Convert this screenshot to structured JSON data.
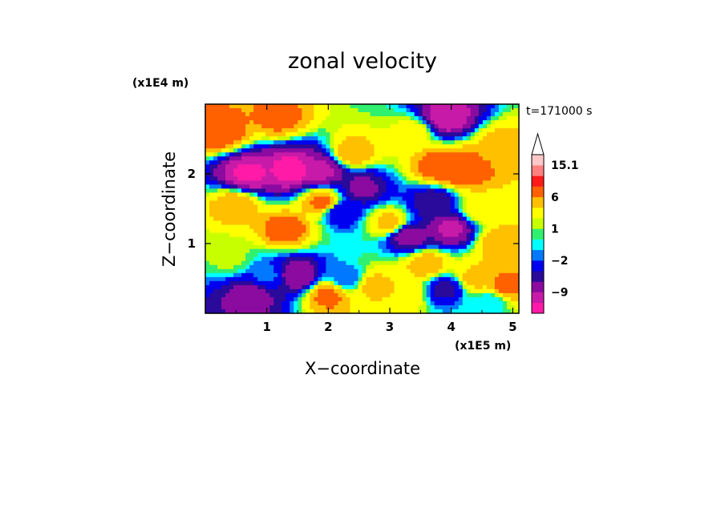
{
  "chart_data": {
    "type": "heatmap",
    "title": "zonal velocity",
    "xlabel": "X−coordinate",
    "ylabel": "Z−coordinate",
    "x_unit": "(x1E5 m)",
    "y_unit": "(x1E4 m)",
    "time_label": "t=171000 s",
    "xlim": [
      0,
      5.1
    ],
    "ylim": [
      0,
      3.0
    ],
    "x_ticks": [
      1,
      2,
      3,
      4,
      5
    ],
    "y_ticks": [
      1,
      2
    ],
    "x_tick_labels": [
      "1",
      "2",
      "3",
      "4",
      "5"
    ],
    "y_tick_labels": [
      "1",
      "2"
    ],
    "colorbar": {
      "levels": [
        -15,
        -12,
        -9,
        -6,
        -4,
        -2,
        -1,
        0,
        1,
        2,
        4,
        6,
        9,
        12,
        15.1
      ],
      "colors": [
        "#ff1aa8",
        "#c81aa8",
        "#8b0aa0",
        "#2a0a9a",
        "#0000f0",
        "#0078ff",
        "#00ffff",
        "#30f070",
        "#c8ff00",
        "#ffff00",
        "#ffc000",
        "#ff6000",
        "#ff1a1a",
        "#ff8080",
        "#ffc8c8"
      ],
      "labels": [
        "15.1",
        "6",
        "1",
        "−2",
        "−9"
      ],
      "label_values": [
        15.1,
        6,
        1,
        -2,
        -9
      ],
      "extend_top": true
    },
    "field_blobs": [
      {
        "x": 0.25,
        "z": 2.6,
        "v": 8
      },
      {
        "x": 1.2,
        "z": 2.8,
        "v": 7
      },
      {
        "x": 0.7,
        "z": 2.0,
        "v": -13
      },
      {
        "x": 1.4,
        "z": 2.05,
        "v": -14
      },
      {
        "x": 1.9,
        "z": 2.05,
        "v": -10
      },
      {
        "x": 2.4,
        "z": 2.3,
        "v": 6
      },
      {
        "x": 2.55,
        "z": 1.8,
        "v": -7
      },
      {
        "x": 3.4,
        "z": 2.6,
        "v": 3
      },
      {
        "x": 3.9,
        "z": 2.8,
        "v": -12
      },
      {
        "x": 4.2,
        "z": 2.05,
        "v": 9
      },
      {
        "x": 3.8,
        "z": 2.1,
        "v": 8
      },
      {
        "x": 4.8,
        "z": 2.4,
        "v": 5
      },
      {
        "x": 1.3,
        "z": 1.2,
        "v": 8
      },
      {
        "x": 0.5,
        "z": 1.55,
        "v": 6
      },
      {
        "x": 1.9,
        "z": 1.6,
        "v": 7
      },
      {
        "x": 2.2,
        "z": 1.45,
        "v": -4
      },
      {
        "x": 3.0,
        "z": 1.3,
        "v": 5
      },
      {
        "x": 3.3,
        "z": 1.1,
        "v": -8
      },
      {
        "x": 4.0,
        "z": 1.2,
        "v": -10
      },
      {
        "x": 3.7,
        "z": 1.6,
        "v": -6
      },
      {
        "x": 4.8,
        "z": 1.0,
        "v": 6
      },
      {
        "x": 4.5,
        "z": 1.5,
        "v": 4
      },
      {
        "x": 0.4,
        "z": 0.8,
        "v": 1.5
      },
      {
        "x": 1.0,
        "z": 0.55,
        "v": -1.5
      },
      {
        "x": 1.5,
        "z": 0.55,
        "v": -9
      },
      {
        "x": 2.3,
        "z": 0.5,
        "v": -2
      },
      {
        "x": 2.0,
        "z": 0.25,
        "v": 7
      },
      {
        "x": 0.75,
        "z": 0.25,
        "v": -8
      },
      {
        "x": 2.75,
        "z": 0.4,
        "v": 5
      },
      {
        "x": 3.25,
        "z": 0.3,
        "v": 4
      },
      {
        "x": 3.6,
        "z": 0.7,
        "v": 6
      },
      {
        "x": 3.9,
        "z": 0.35,
        "v": -5
      },
      {
        "x": 4.4,
        "z": 0.5,
        "v": 5
      },
      {
        "x": 4.9,
        "z": 0.4,
        "v": 7
      },
      {
        "x": 4.6,
        "z": 0.15,
        "v": -1
      }
    ]
  }
}
